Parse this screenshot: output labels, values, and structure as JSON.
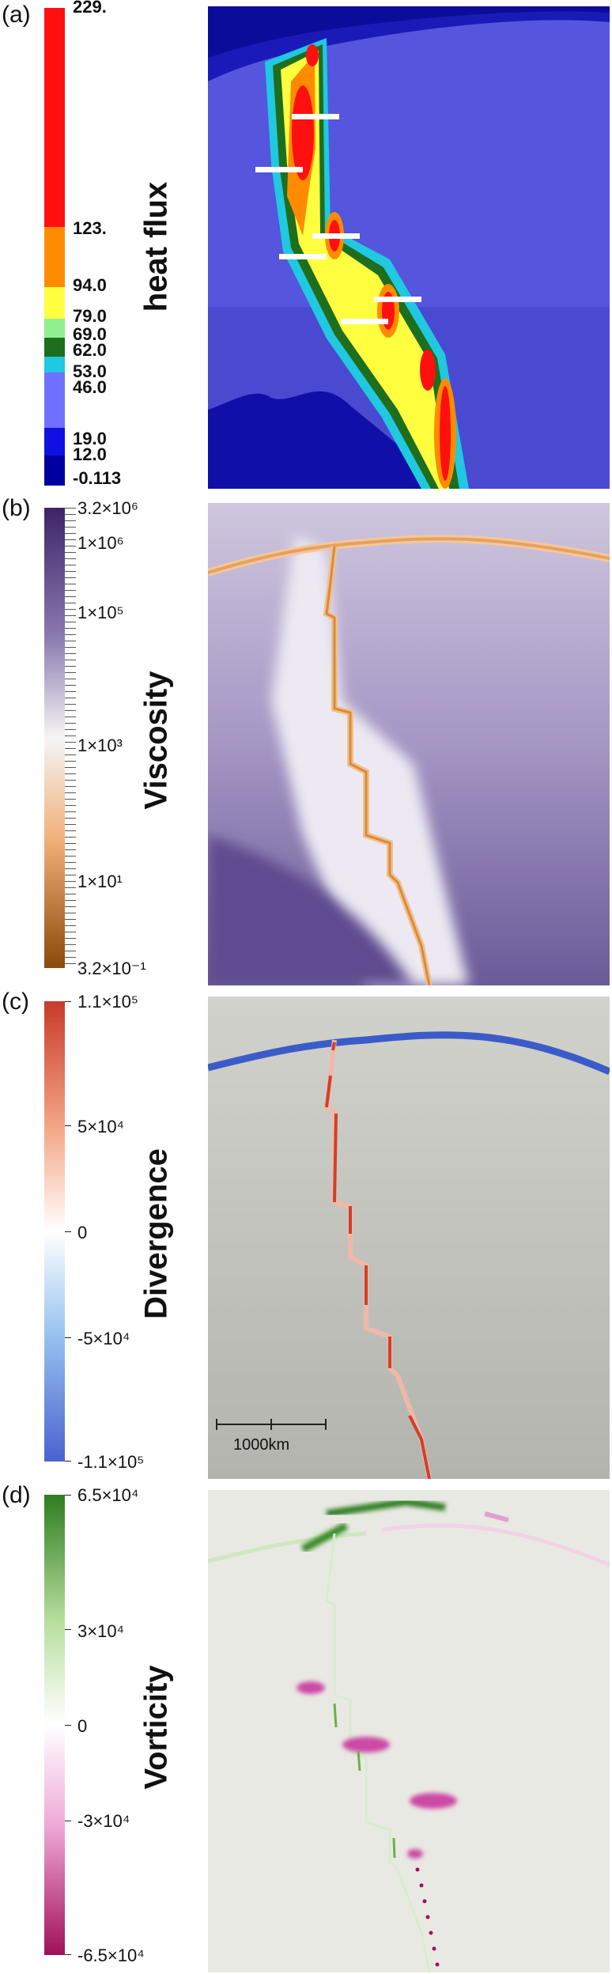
{
  "panels": [
    {
      "label": "(a)",
      "title": "heat flux",
      "colorbar": {
        "colors": [
          "#ff1010",
          "#ff8c00",
          "#ffff40",
          "#90ee90",
          "#1e6e1e",
          "#20c8e0",
          "#7070ff",
          "#1010e0",
          "#0000a0"
        ],
        "ticks": [
          "229.",
          "123.",
          "94.0",
          "79.0",
          "69.0",
          "62.0",
          "53.0",
          "46.0",
          "19.0",
          "12.0",
          "-0.113"
        ]
      }
    },
    {
      "label": "(b)",
      "title": "Viscosity",
      "colorbar": {
        "colors": [
          "#3d2468",
          "#8a7ab0",
          "#f5f5f5",
          "#f2b07a",
          "#8a4a0a"
        ],
        "ticks": [
          "3.2×10⁶",
          "1×10⁶",
          "1×10⁵",
          "1×10³",
          "1×10¹",
          "3.2×10⁻¹"
        ]
      }
    },
    {
      "label": "(c)",
      "title": "Divergence",
      "colorbar": {
        "colors": [
          "#c83a2a",
          "#f5a888",
          "#ffffff",
          "#9ac4f0",
          "#4a62d0"
        ],
        "ticks": [
          "1.1×10⁵",
          "5×10⁴",
          "0",
          "-5×10⁴",
          "-1.1×10⁵"
        ]
      },
      "scale_bar": "1000km"
    },
    {
      "label": "(d)",
      "title": "Vorticity",
      "colorbar": {
        "colors": [
          "#2e7d20",
          "#b8e0a0",
          "#ffffff",
          "#f0a8d8",
          "#a0105a"
        ],
        "ticks": [
          "6.5×10⁴",
          "3×10⁴",
          "0",
          "-3×10⁴",
          "-6.5×10⁴"
        ]
      }
    }
  ]
}
